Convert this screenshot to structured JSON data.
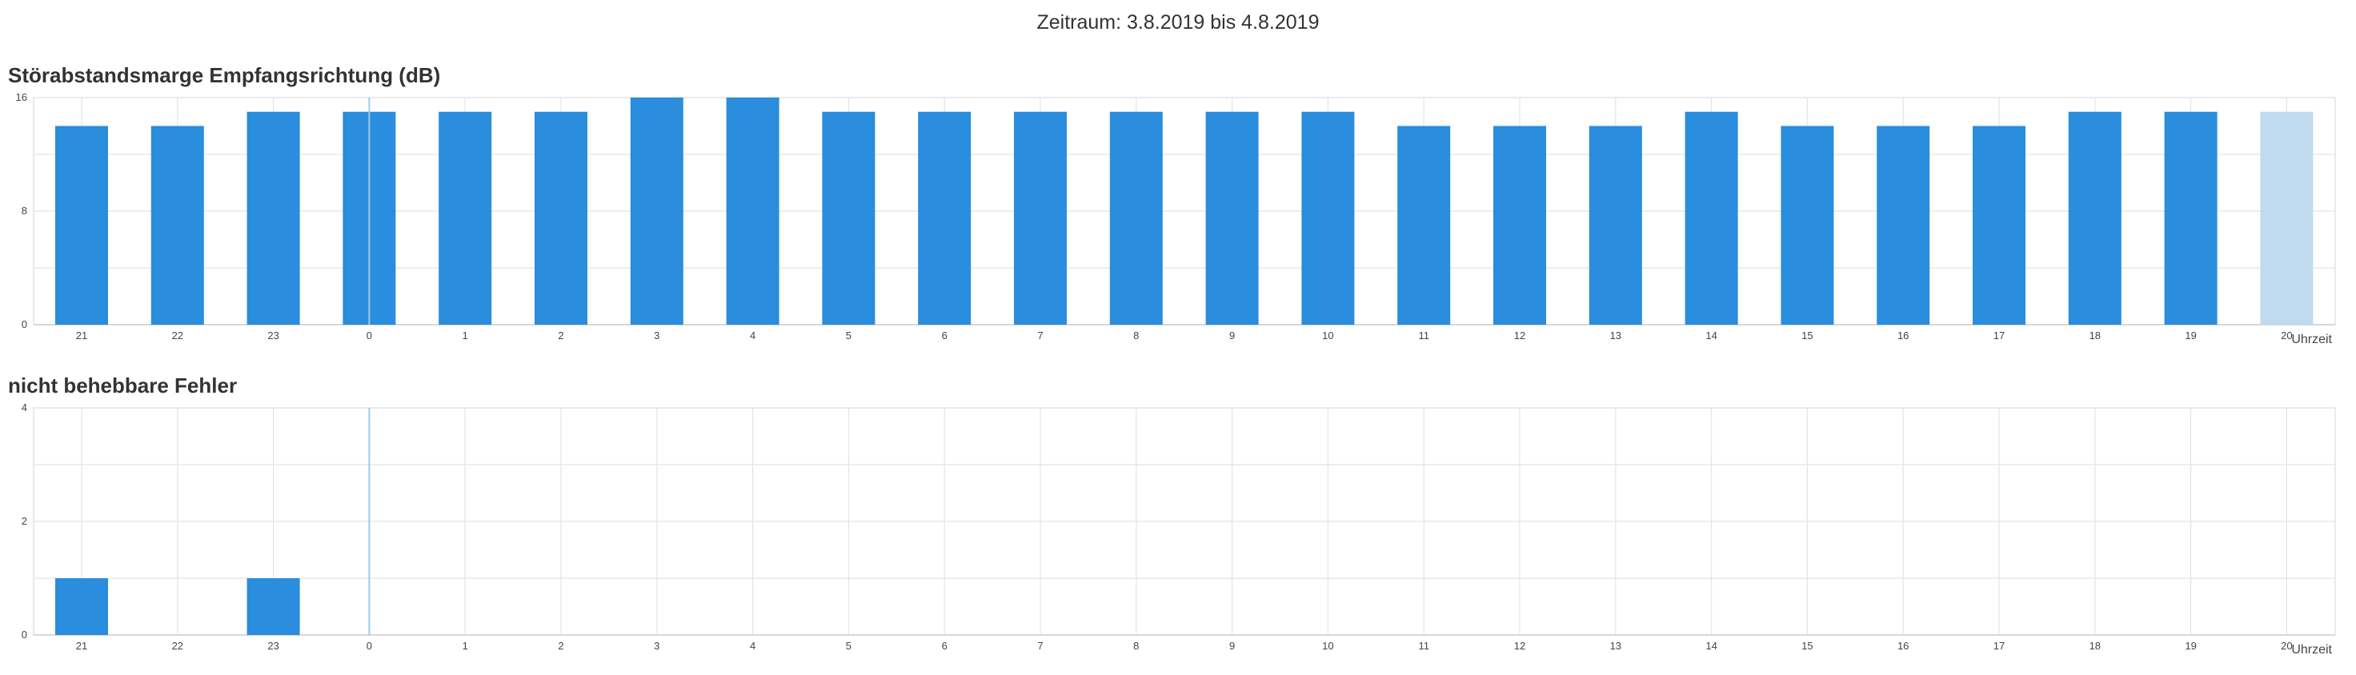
{
  "period": "Zeitraum: 3.8.2019 bis 4.8.2019",
  "colors": {
    "bar": "#2a8ddd",
    "bar_current": "#c0dbf0",
    "grid": "#e4e4e4",
    "axis": "#d0d0d0",
    "marker": "#9ccbe8"
  },
  "chart_data": [
    {
      "type": "bar",
      "title": "Störabstandsmarge Empfangsrichtung (dB)",
      "xlabel": "Uhrzeit",
      "ylabel": "",
      "categories": [
        "21",
        "22",
        "23",
        "0",
        "1",
        "2",
        "3",
        "4",
        "5",
        "6",
        "7",
        "8",
        "9",
        "10",
        "11",
        "12",
        "13",
        "14",
        "15",
        "16",
        "17",
        "18",
        "19",
        "20"
      ],
      "values": [
        14,
        14,
        15,
        15,
        15,
        15,
        16,
        16,
        15,
        15,
        15,
        15,
        15,
        15,
        14,
        14,
        14,
        15,
        14,
        14,
        14,
        15,
        15,
        15
      ],
      "highlight_last": true,
      "ylim": [
        0,
        16
      ],
      "yticks": [
        "16",
        "8",
        "0"
      ],
      "grid": true,
      "marker_category": "0"
    },
    {
      "type": "bar",
      "title": "nicht behebbare Fehler",
      "xlabel": "Uhrzeit",
      "ylabel": "",
      "categories": [
        "21",
        "22",
        "23",
        "0",
        "1",
        "2",
        "3",
        "4",
        "5",
        "6",
        "7",
        "8",
        "9",
        "10",
        "11",
        "12",
        "13",
        "14",
        "15",
        "16",
        "17",
        "18",
        "19",
        "20"
      ],
      "values": [
        1,
        0,
        1,
        0,
        0,
        0,
        0,
        0,
        0,
        0,
        0,
        0,
        0,
        0,
        0,
        0,
        0,
        0,
        0,
        0,
        0,
        0,
        0,
        0
      ],
      "highlight_last": false,
      "ylim": [
        0,
        4
      ],
      "yticks": [
        "4",
        "2",
        "0"
      ],
      "grid": true,
      "marker_category": "0"
    }
  ]
}
